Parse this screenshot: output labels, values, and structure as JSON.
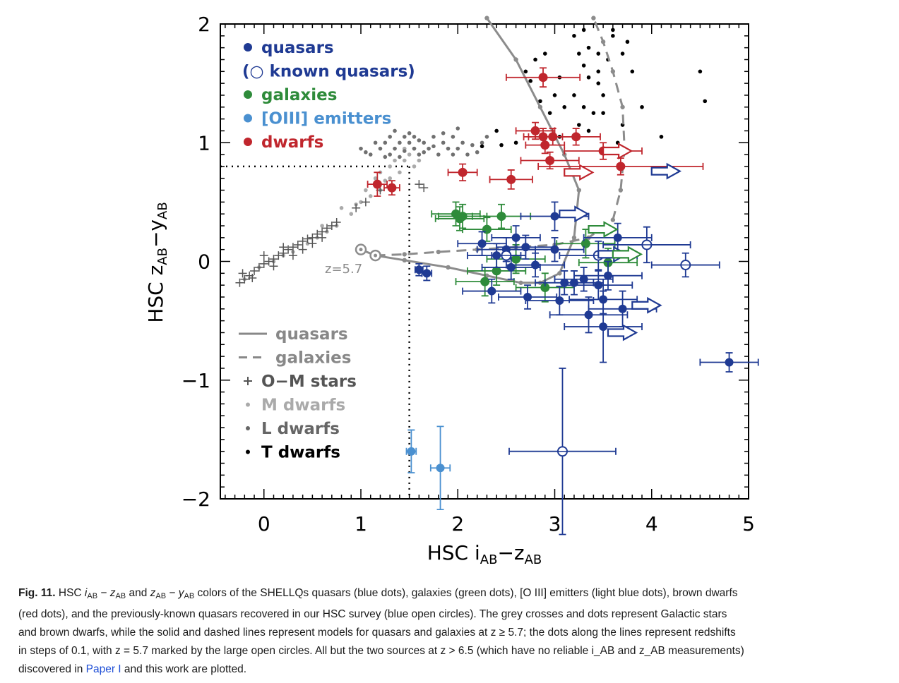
{
  "chart_data": {
    "type": "scatter",
    "xlabel_main": "HSC i",
    "xlabel_sub1": "AB",
    "xlabel_mid": "−z",
    "xlabel_sub2": "AB",
    "ylabel_main": "HSC z",
    "ylabel_sub1": "AB",
    "ylabel_mid": "−y",
    "ylabel_sub2": "AB",
    "xlim": [
      -0.45,
      5
    ],
    "ylim": [
      -2,
      2
    ],
    "x_ticks": [
      0,
      1,
      2,
      3,
      4,
      5
    ],
    "x_tick_labels": [
      "0",
      "1",
      "2",
      "3",
      "4",
      "5"
    ],
    "y_ticks": [
      -2,
      -1,
      0,
      1,
      2
    ],
    "y_tick_labels": [
      "−2",
      "−1",
      "0",
      "1",
      "2"
    ],
    "cut_lines": {
      "y": 0.8,
      "x": 1.5
    },
    "z_label": "z=5.7",
    "legend_top": [
      {
        "label": "quasars",
        "marker": "●",
        "color": "#1f3a93"
      },
      {
        "label": "(○ known quasars)",
        "marker": "",
        "color": "#1f3a93"
      },
      {
        "label": "galaxies",
        "marker": "●",
        "color": "#2e8b3a"
      },
      {
        "label": "[OIII] emitters",
        "marker": "●",
        "color": "#4a90d0"
      },
      {
        "label": "dwarfs",
        "marker": "●",
        "color": "#c0262d"
      }
    ],
    "legend_bottom": [
      {
        "label": "quasars",
        "style": "solid",
        "color": "#888888"
      },
      {
        "label": "galaxies",
        "style": "dashed",
        "color": "#888888"
      },
      {
        "label": "O−M stars",
        "marker": "+",
        "color": "#555555"
      },
      {
        "label": "M dwarfs",
        "marker": "•",
        "color": "#aaaaaa"
      },
      {
        "label": "L dwarfs",
        "marker": "•",
        "color": "#666666"
      },
      {
        "label": "T dwarfs",
        "marker": "•",
        "color": "#000000"
      }
    ],
    "colors": {
      "quasar": "#1f3a93",
      "galaxy": "#2e8b3a",
      "oiii": "#4a90d0",
      "dwarf": "#c0262d",
      "model": "#8c8c8c"
    },
    "quasar_model": [
      [
        1.0,
        0.1
      ],
      [
        1.15,
        0.05
      ],
      [
        1.45,
        0.01
      ],
      [
        1.9,
        -0.05
      ],
      [
        2.3,
        -0.12
      ],
      [
        2.65,
        -0.18
      ],
      [
        2.85,
        -0.18
      ],
      [
        3.05,
        -0.1
      ],
      [
        3.2,
        0.2
      ],
      [
        3.25,
        0.6
      ],
      [
        3.1,
        0.9
      ],
      [
        2.85,
        1.3
      ],
      [
        2.6,
        1.7
      ],
      [
        2.3,
        2.05
      ]
    ],
    "galaxy_model": [
      [
        1.15,
        0.05
      ],
      [
        1.45,
        0.06
      ],
      [
        1.8,
        0.08
      ],
      [
        2.2,
        0.1
      ],
      [
        2.6,
        0.12
      ],
      [
        3.0,
        0.14
      ],
      [
        3.35,
        0.2
      ],
      [
        3.6,
        0.35
      ],
      [
        3.68,
        0.6
      ],
      [
        3.72,
        0.95
      ],
      [
        3.7,
        1.3
      ],
      [
        3.6,
        1.6
      ],
      [
        3.5,
        1.85
      ],
      [
        3.4,
        2.05
      ]
    ],
    "quasars": [
      {
        "x": 1.68,
        "y": -0.1,
        "xerr": 0.05,
        "yerr": 0.06
      },
      {
        "x": 1.6,
        "y": -0.07,
        "xerr": 0.04,
        "yerr": 0.05
      },
      {
        "x": 2.25,
        "y": 0.15,
        "xerr": 0.25,
        "yerr": 0.1
      },
      {
        "x": 2.4,
        "y": 0.05,
        "xerr": 0.3,
        "yerr": 0.1
      },
      {
        "x": 2.5,
        "y": 0.1,
        "xerr": 0.3,
        "yerr": 0.1
      },
      {
        "x": 2.6,
        "y": 0.2,
        "xerr": 0.25,
        "yerr": 0.1
      },
      {
        "x": 2.7,
        "y": 0.12,
        "xerr": 0.3,
        "yerr": 0.1
      },
      {
        "x": 2.55,
        "y": -0.05,
        "xerr": 0.3,
        "yerr": 0.1
      },
      {
        "x": 2.35,
        "y": -0.25,
        "xerr": 0.3,
        "yerr": 0.1
      },
      {
        "x": 2.8,
        "y": -0.03,
        "xerr": 0.3,
        "yerr": 0.1
      },
      {
        "x": 2.72,
        "y": -0.3,
        "xerr": 0.3,
        "yerr": 0.1
      },
      {
        "x": 3.0,
        "y": 0.1,
        "xerr": 0.3,
        "yerr": 0.1
      },
      {
        "x": 3.1,
        "y": -0.18,
        "xerr": 0.3,
        "yerr": 0.1
      },
      {
        "x": 3.2,
        "y": -0.18,
        "xerr": 0.3,
        "yerr": 0.1
      },
      {
        "x": 3.3,
        "y": -0.15,
        "xerr": 0.3,
        "yerr": 0.1
      },
      {
        "x": 3.45,
        "y": -0.2,
        "xerr": 0.35,
        "yerr": 0.12
      },
      {
        "x": 3.55,
        "y": -0.12,
        "xerr": 0.35,
        "yerr": 0.12
      },
      {
        "x": 3.5,
        "y": -0.32,
        "xerr": 0.35,
        "yerr": 0.12
      },
      {
        "x": 3.65,
        "y": 0.2,
        "xerr": 0.35,
        "yerr": 0.12
      },
      {
        "x": 3.7,
        "y": -0.4,
        "xerr": 0.35,
        "yerr": 0.15
      },
      {
        "x": 3.35,
        "y": -0.45,
        "xerr": 0.4,
        "yerr": 0.15
      },
      {
        "x": 3.05,
        "y": -0.33,
        "xerr": 0.35,
        "yerr": 0.12
      },
      {
        "x": 3.0,
        "y": 0.38,
        "xerr": 0.35,
        "yerr": 0.12
      },
      {
        "x": 3.5,
        "y": -0.55,
        "xerr": 0.4,
        "yerr": 0.3
      },
      {
        "x": 4.8,
        "y": -0.85,
        "xerr": 0.3,
        "yerr": 0.08
      }
    ],
    "known_quasars": [
      {
        "x": 2.5,
        "y": 0.05,
        "xerr": 0.15,
        "yerr": 0.05
      },
      {
        "x": 3.45,
        "y": 0.05,
        "xerr": 0.4,
        "yerr": 0.12
      },
      {
        "x": 3.95,
        "y": 0.14,
        "xerr": 0.45,
        "yerr": 0.15
      },
      {
        "x": 4.35,
        "y": -0.03,
        "xerr": 0.35,
        "yerr": 0.1
      },
      {
        "x": 3.08,
        "y": -1.6,
        "xerr": 0.55,
        "yerr": 0.7
      }
    ],
    "galaxies": [
      {
        "x": 1.98,
        "y": 0.4,
        "xerr": 0.25,
        "yerr": 0.1
      },
      {
        "x": 2.02,
        "y": 0.36,
        "xerr": 0.25,
        "yerr": 0.1
      },
      {
        "x": 2.05,
        "y": 0.38,
        "xerr": 0.25,
        "yerr": 0.1
      },
      {
        "x": 2.3,
        "y": 0.27,
        "xerr": 0.25,
        "yerr": 0.1
      },
      {
        "x": 2.45,
        "y": 0.38,
        "xerr": 0.3,
        "yerr": 0.1
      },
      {
        "x": 2.28,
        "y": -0.17,
        "xerr": 0.3,
        "yerr": 0.12
      },
      {
        "x": 2.4,
        "y": -0.08,
        "xerr": 0.3,
        "yerr": 0.12
      },
      {
        "x": 2.6,
        "y": 0.02,
        "xerr": 0.3,
        "yerr": 0.12
      },
      {
        "x": 2.9,
        "y": -0.22,
        "xerr": 0.3,
        "yerr": 0.12
      },
      {
        "x": 3.32,
        "y": 0.15,
        "xerr": 0.3,
        "yerr": 0.12
      },
      {
        "x": 3.55,
        "y": -0.01,
        "xerr": 0.3,
        "yerr": 0.12
      }
    ],
    "oiii": [
      {
        "x": 1.52,
        "y": -1.6,
        "xerr": 0.05,
        "yerr": 0.18
      },
      {
        "x": 1.82,
        "y": -1.74,
        "xerr": 0.1,
        "yerr": 0.35
      }
    ],
    "dwarfs": [
      {
        "x": 1.17,
        "y": 0.65,
        "xerr": 0.1,
        "yerr": 0.1
      },
      {
        "x": 1.32,
        "y": 0.62,
        "xerr": 0.08,
        "yerr": 0.06
      },
      {
        "x": 2.05,
        "y": 0.75,
        "xerr": 0.15,
        "yerr": 0.07
      },
      {
        "x": 2.55,
        "y": 0.69,
        "xerr": 0.22,
        "yerr": 0.08
      },
      {
        "x": 2.88,
        "y": 1.55,
        "xerr": 0.38,
        "yerr": 0.08
      },
      {
        "x": 2.8,
        "y": 1.1,
        "xerr": 0.2,
        "yerr": 0.07
      },
      {
        "x": 2.88,
        "y": 1.05,
        "xerr": 0.2,
        "yerr": 0.07
      },
      {
        "x": 2.98,
        "y": 1.05,
        "xerr": 0.25,
        "yerr": 0.07
      },
      {
        "x": 2.9,
        "y": 0.98,
        "xerr": 0.2,
        "yerr": 0.07
      },
      {
        "x": 3.22,
        "y": 1.05,
        "xerr": 0.25,
        "yerr": 0.07
      },
      {
        "x": 2.95,
        "y": 0.85,
        "xerr": 0.3,
        "yerr": 0.07
      },
      {
        "x": 3.5,
        "y": 0.93,
        "xerr": 0.4,
        "yerr": 0.07
      },
      {
        "x": 3.68,
        "y": 0.8,
        "xerr": 0.85,
        "yerr": 0.07
      }
    ],
    "arrows": [
      {
        "x": 3.05,
        "y": 0.4,
        "color": "quasar"
      },
      {
        "x": 3.35,
        "y": 0.27,
        "color": "galaxy"
      },
      {
        "x": 3.45,
        "y": 0.06,
        "color": "quasar"
      },
      {
        "x": 3.6,
        "y": 0.06,
        "color": "galaxy"
      },
      {
        "x": 3.8,
        "y": -0.37,
        "color": "quasar"
      },
      {
        "x": 3.55,
        "y": -0.6,
        "color": "quasar"
      },
      {
        "x": 3.1,
        "y": 0.75,
        "color": "dwarf"
      },
      {
        "x": 3.5,
        "y": 0.93,
        "color": "dwarf"
      },
      {
        "x": 4.0,
        "y": 0.76,
        "color": "quasar"
      }
    ],
    "t_dwarfs": [
      [
        2.7,
        1.6
      ],
      [
        2.75,
        1.52
      ],
      [
        2.8,
        1.7
      ],
      [
        2.9,
        1.75
      ],
      [
        3.0,
        1.4
      ],
      [
        3.05,
        1.55
      ],
      [
        3.1,
        1.3
      ],
      [
        2.85,
        1.35
      ],
      [
        2.95,
        1.25
      ],
      [
        3.25,
        1.75
      ],
      [
        3.35,
        1.8
      ],
      [
        3.35,
        1.55
      ],
      [
        3.45,
        1.6
      ],
      [
        3.5,
        1.4
      ],
      [
        3.3,
        1.3
      ],
      [
        3.4,
        1.25
      ],
      [
        3.25,
        1.15
      ],
      [
        3.35,
        1.1
      ],
      [
        3.5,
        1.25
      ],
      [
        3.45,
        1.5
      ],
      [
        3.55,
        1.7
      ],
      [
        3.2,
        1.9
      ],
      [
        3.3,
        1.95
      ],
      [
        3.6,
        1.95
      ],
      [
        3.6,
        1.9
      ],
      [
        3.7,
        1.75
      ],
      [
        3.8,
        1.6
      ],
      [
        3.9,
        1.3
      ],
      [
        3.75,
        1.85
      ],
      [
        4.1,
        1.05
      ],
      [
        4.5,
        1.6
      ],
      [
        4.55,
        1.35
      ],
      [
        2.45,
        0.98
      ],
      [
        2.25,
        0.97
      ],
      [
        2.6,
        1.0
      ],
      [
        2.4,
        1.1
      ],
      [
        3.05,
        1.05
      ],
      [
        3.2,
        1.4
      ],
      [
        3.3,
        1.65
      ],
      [
        3.45,
        1.75
      ],
      [
        3.7,
        1.15
      ],
      [
        3.65,
        1.0
      ]
    ],
    "m_dwarfs": [
      [
        -0.2,
        -0.15
      ],
      [
        -0.05,
        -0.05
      ],
      [
        0.1,
        0.0
      ],
      [
        0.2,
        0.05
      ],
      [
        0.3,
        0.08
      ],
      [
        0.45,
        0.15
      ],
      [
        0.55,
        0.2
      ],
      [
        0.65,
        0.25
      ],
      [
        0.75,
        0.3
      ],
      [
        0.9,
        0.4
      ],
      [
        1.0,
        0.5
      ],
      [
        1.1,
        0.55
      ],
      [
        1.2,
        0.6
      ],
      [
        1.3,
        0.7
      ],
      [
        1.4,
        0.75
      ],
      [
        1.45,
        0.85
      ],
      [
        1.5,
        0.9
      ],
      [
        1.3,
        0.8
      ],
      [
        1.2,
        0.75
      ],
      [
        1.55,
        0.8
      ],
      [
        1.6,
        0.85
      ],
      [
        0.6,
        0.3
      ],
      [
        0.8,
        0.45
      ],
      [
        0.95,
        0.48
      ],
      [
        1.05,
        0.6
      ],
      [
        1.15,
        0.7
      ],
      [
        1.25,
        0.68
      ],
      [
        1.35,
        0.85
      ],
      [
        1.45,
        0.95
      ],
      [
        1.55,
        0.95
      ]
    ],
    "l_dwarfs": [
      [
        1.0,
        0.95
      ],
      [
        1.1,
        0.9
      ],
      [
        1.2,
        0.95
      ],
      [
        1.25,
        1.0
      ],
      [
        1.3,
        1.05
      ],
      [
        1.35,
        0.95
      ],
      [
        1.4,
        1.0
      ],
      [
        1.45,
        1.05
      ],
      [
        1.5,
        1.0
      ],
      [
        1.55,
        0.95
      ],
      [
        1.6,
        0.9
      ],
      [
        1.65,
        1.0
      ],
      [
        1.7,
        0.95
      ],
      [
        1.75,
        1.05
      ],
      [
        1.8,
        0.9
      ],
      [
        1.85,
        1.0
      ],
      [
        1.9,
        0.95
      ],
      [
        1.95,
        1.05
      ],
      [
        2.0,
        0.95
      ],
      [
        2.05,
        1.0
      ],
      [
        2.1,
        0.9
      ],
      [
        2.15,
        0.98
      ],
      [
        2.2,
        0.92
      ],
      [
        2.25,
        1.0
      ],
      [
        2.3,
        1.05
      ],
      [
        2.0,
        1.12
      ],
      [
        1.3,
        0.9
      ],
      [
        1.4,
        0.88
      ],
      [
        1.5,
        1.08
      ],
      [
        1.6,
        1.02
      ],
      [
        1.35,
        1.1
      ],
      [
        1.45,
        0.93
      ],
      [
        1.55,
        1.05
      ],
      [
        1.65,
        0.92
      ],
      [
        1.75,
        0.97
      ],
      [
        1.85,
        1.08
      ],
      [
        1.95,
        0.9
      ],
      [
        1.25,
        0.88
      ],
      [
        1.15,
        1.0
      ],
      [
        1.05,
        0.92
      ]
    ],
    "om_stars": [
      [
        -0.25,
        -0.18
      ],
      [
        -0.2,
        -0.15
      ],
      [
        -0.15,
        -0.12
      ],
      [
        -0.1,
        -0.08
      ],
      [
        -0.05,
        -0.05
      ],
      [
        0.0,
        -0.02
      ],
      [
        0.05,
        0.0
      ],
      [
        0.1,
        0.02
      ],
      [
        0.15,
        0.05
      ],
      [
        0.2,
        0.07
      ],
      [
        0.25,
        0.1
      ],
      [
        0.3,
        0.12
      ],
      [
        0.35,
        0.14
      ],
      [
        0.4,
        0.17
      ],
      [
        0.45,
        0.19
      ],
      [
        0.5,
        0.2
      ],
      [
        0.55,
        0.23
      ],
      [
        0.6,
        0.25
      ],
      [
        0.65,
        0.28
      ],
      [
        0.7,
        0.3
      ],
      [
        0.75,
        0.33
      ],
      [
        -0.22,
        -0.1
      ],
      [
        -0.12,
        -0.14
      ],
      [
        0.0,
        0.05
      ],
      [
        0.1,
        -0.04
      ],
      [
        0.2,
        0.12
      ],
      [
        0.3,
        0.05
      ],
      [
        0.4,
        0.1
      ],
      [
        0.5,
        0.15
      ],
      [
        0.6,
        0.2
      ],
      [
        0.95,
        0.45
      ],
      [
        1.05,
        0.5
      ],
      [
        1.2,
        0.6
      ],
      [
        1.6,
        0.65
      ],
      [
        1.65,
        0.62
      ]
    ]
  },
  "caption": {
    "fig_label": "Fig. 11.",
    "line1_pre": " HSC ",
    "line1_rest": " colors of the SHELLQs quasars (blue dots), galaxies (green dots), [O III] emitters (light blue dots), brown dwarfs",
    "line2": "(red dots), and the previously-known quasars recovered in our HSC survey (blue open circles). The grey crosses and dots represent Galactic stars",
    "line3": "and brown dwarfs, while the solid and dashed lines represent models for quasars and galaxies at z ≥ 5.7; the dots along the lines represent redshifts",
    "line4": "in steps of 0.1, with z = 5.7 marked by the large open circles. All but the two sources at z > 6.5 (which have no reliable i_AB and z_AB measurements)",
    "line5_pre": "discovered in ",
    "line5_link": "Paper I",
    "line5_post": " and this work are plotted."
  }
}
